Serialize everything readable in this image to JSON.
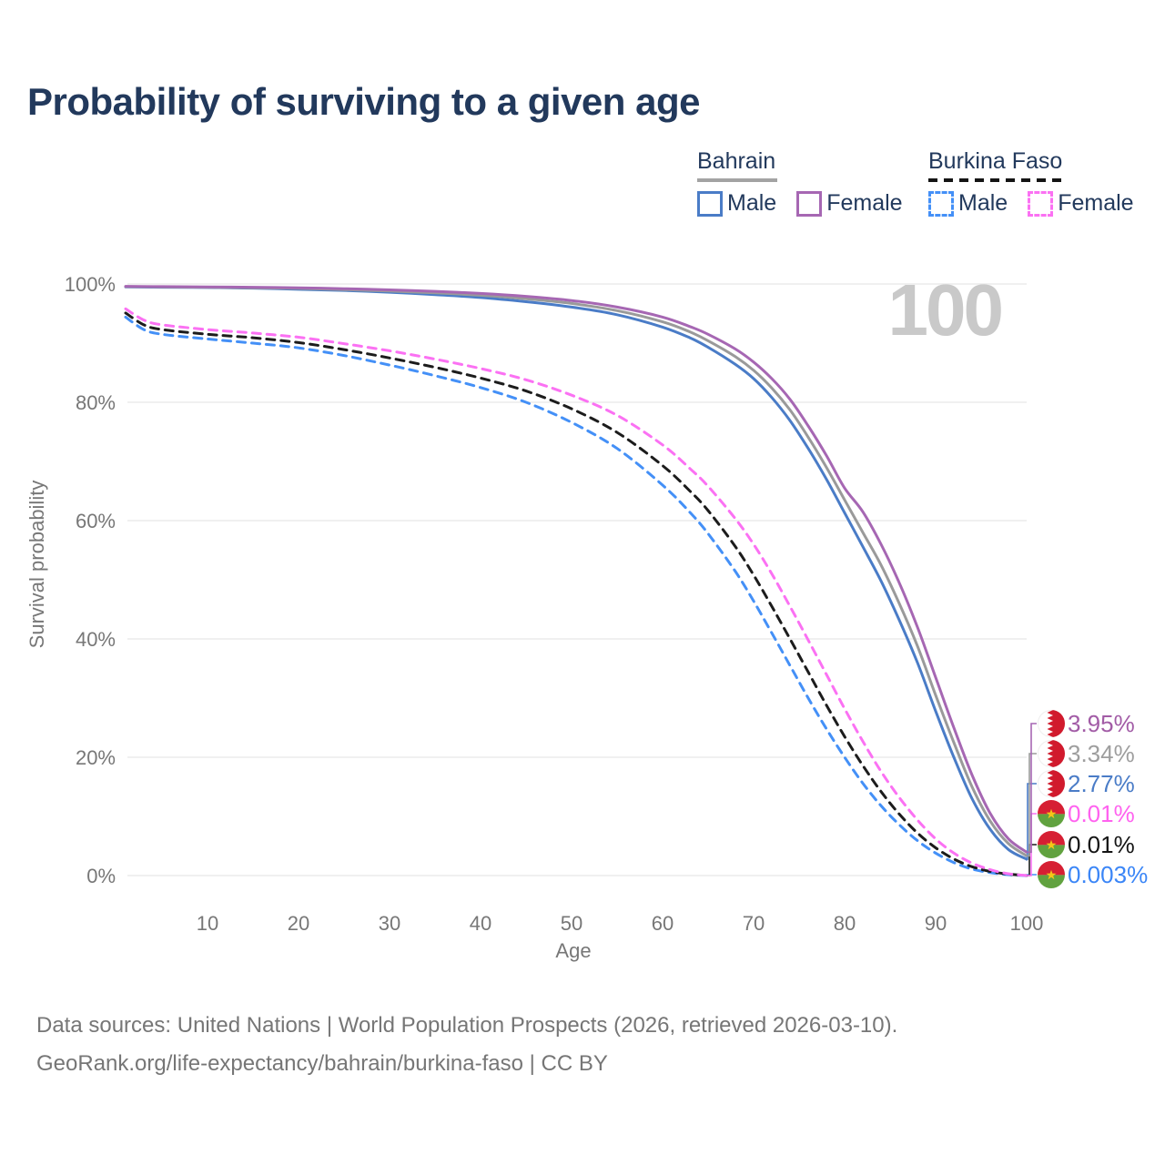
{
  "title": "Probability of surviving to a given age",
  "watermark": "100",
  "legend": {
    "groups": [
      {
        "label": "Bahrain",
        "underline": "solid",
        "underline_color": "#a3a3a3",
        "items": [
          {
            "label": "Male",
            "color": "#4a7cc7",
            "dashed": false
          },
          {
            "label": "Female",
            "color": "#a667b3",
            "dashed": false
          }
        ]
      },
      {
        "label": "Burkina Faso",
        "underline": "dashed",
        "underline_color": "#141414",
        "items": [
          {
            "label": "Male",
            "color": "#4490f7",
            "dashed": true
          },
          {
            "label": "Female",
            "color": "#fb71f3",
            "dashed": true
          }
        ]
      }
    ]
  },
  "chart_data": {
    "type": "line",
    "xlabel": "Age",
    "ylabel": "Survival probability",
    "xlim": [
      0,
      100
    ],
    "ylim": [
      0,
      100
    ],
    "grid": "horizontal",
    "x_ticks": [
      10,
      20,
      30,
      40,
      50,
      60,
      70,
      80,
      90,
      100
    ],
    "y_ticks": [
      {
        "value": 0,
        "label": "0%"
      },
      {
        "value": 20,
        "label": "20%"
      },
      {
        "value": 40,
        "label": "40%"
      },
      {
        "value": 60,
        "label": "60%"
      },
      {
        "value": 80,
        "label": "80%"
      },
      {
        "value": 100,
        "label": "100%"
      }
    ],
    "series": [
      {
        "name": "Burkina Faso Male",
        "color": "#4490f7",
        "dashed": true,
        "flag": "burkina-faso",
        "end_label": "0.003%",
        "end_label_color": "#3b86f7",
        "label_slot": 5,
        "points": [
          [
            1,
            94.4
          ],
          [
            3,
            92.3
          ],
          [
            5,
            91.5
          ],
          [
            10,
            90.7
          ],
          [
            15,
            90.0
          ],
          [
            20,
            89.2
          ],
          [
            25,
            87.9
          ],
          [
            30,
            86.3
          ],
          [
            35,
            84.5
          ],
          [
            40,
            82.5
          ],
          [
            45,
            80.0
          ],
          [
            50,
            76.6
          ],
          [
            55,
            72.2
          ],
          [
            60,
            66.0
          ],
          [
            63,
            61.4
          ],
          [
            65,
            57.8
          ],
          [
            68,
            51.4
          ],
          [
            70,
            46.4
          ],
          [
            72,
            41.0
          ],
          [
            74,
            35.5
          ],
          [
            76,
            30.0
          ],
          [
            78,
            24.8
          ],
          [
            80,
            20.0
          ],
          [
            82,
            15.6
          ],
          [
            84,
            11.8
          ],
          [
            86,
            8.6
          ],
          [
            88,
            5.9
          ],
          [
            90,
            3.8
          ],
          [
            92,
            2.2
          ],
          [
            94,
            1.1
          ],
          [
            96,
            0.5
          ],
          [
            98,
            0.15
          ],
          [
            100,
            0.003
          ]
        ]
      },
      {
        "name": "Burkina Faso",
        "color": "#1c1c1c",
        "dashed": true,
        "flag": "burkina-faso",
        "end_label": "0.01%",
        "end_label_color": "#141414",
        "label_slot": 4,
        "points": [
          [
            1,
            95.1
          ],
          [
            3,
            93.1
          ],
          [
            5,
            92.3
          ],
          [
            10,
            91.5
          ],
          [
            15,
            90.9
          ],
          [
            20,
            90.1
          ],
          [
            25,
            88.9
          ],
          [
            30,
            87.5
          ],
          [
            35,
            85.9
          ],
          [
            40,
            84.1
          ],
          [
            45,
            81.9
          ],
          [
            50,
            78.9
          ],
          [
            55,
            74.9
          ],
          [
            60,
            69.3
          ],
          [
            63,
            65.0
          ],
          [
            65,
            61.7
          ],
          [
            68,
            55.6
          ],
          [
            70,
            50.8
          ],
          [
            72,
            45.5
          ],
          [
            74,
            40.0
          ],
          [
            76,
            34.4
          ],
          [
            78,
            28.8
          ],
          [
            80,
            23.5
          ],
          [
            82,
            18.6
          ],
          [
            84,
            14.2
          ],
          [
            86,
            10.4
          ],
          [
            88,
            7.2
          ],
          [
            90,
            4.7
          ],
          [
            92,
            2.8
          ],
          [
            94,
            1.5
          ],
          [
            96,
            0.7
          ],
          [
            98,
            0.25
          ],
          [
            100,
            0.01
          ]
        ]
      },
      {
        "name": "Burkina Faso Female",
        "color": "#fb71f3",
        "dashed": true,
        "flag": "burkina-faso",
        "end_label": "0.01%",
        "end_label_color": "#ff62ef",
        "label_slot": 3,
        "points": [
          [
            1,
            95.8
          ],
          [
            3,
            93.9
          ],
          [
            5,
            93.1
          ],
          [
            10,
            92.3
          ],
          [
            15,
            91.7
          ],
          [
            20,
            91.0
          ],
          [
            25,
            89.9
          ],
          [
            30,
            88.7
          ],
          [
            35,
            87.3
          ],
          [
            40,
            85.7
          ],
          [
            45,
            83.8
          ],
          [
            50,
            81.2
          ],
          [
            55,
            77.8
          ],
          [
            60,
            72.8
          ],
          [
            63,
            68.8
          ],
          [
            65,
            65.8
          ],
          [
            68,
            60.3
          ],
          [
            70,
            56.0
          ],
          [
            72,
            51.0
          ],
          [
            74,
            45.5
          ],
          [
            76,
            39.8
          ],
          [
            78,
            34.0
          ],
          [
            80,
            28.2
          ],
          [
            82,
            22.7
          ],
          [
            84,
            17.6
          ],
          [
            86,
            13.2
          ],
          [
            88,
            9.4
          ],
          [
            90,
            6.2
          ],
          [
            92,
            3.8
          ],
          [
            94,
            2.1
          ],
          [
            96,
            1.0
          ],
          [
            98,
            0.3
          ],
          [
            100,
            0.011
          ]
        ]
      },
      {
        "name": "Bahrain Male",
        "color": "#4a7cc7",
        "dashed": false,
        "flag": "bahrain",
        "end_label": "2.77%",
        "end_label_color": "#4a7cc7",
        "label_slot": 2,
        "points": [
          [
            1,
            99.5
          ],
          [
            5,
            99.45
          ],
          [
            10,
            99.4
          ],
          [
            15,
            99.3
          ],
          [
            20,
            99.1
          ],
          [
            25,
            98.9
          ],
          [
            30,
            98.6
          ],
          [
            35,
            98.2
          ],
          [
            40,
            97.7
          ],
          [
            45,
            97.0
          ],
          [
            50,
            96.1
          ],
          [
            55,
            94.8
          ],
          [
            60,
            92.7
          ],
          [
            63,
            90.9
          ],
          [
            65,
            89.3
          ],
          [
            68,
            86.4
          ],
          [
            70,
            84.0
          ],
          [
            72,
            80.8
          ],
          [
            74,
            76.9
          ],
          [
            76,
            72.2
          ],
          [
            78,
            67.0
          ],
          [
            80,
            61.3
          ],
          [
            82,
            55.6
          ],
          [
            84,
            49.8
          ],
          [
            86,
            43.2
          ],
          [
            88,
            36.0
          ],
          [
            90,
            27.8
          ],
          [
            92,
            20.0
          ],
          [
            94,
            13.0
          ],
          [
            96,
            7.8
          ],
          [
            98,
            4.4
          ],
          [
            100,
            2.77
          ]
        ]
      },
      {
        "name": "Bahrain",
        "color": "#9a9a9a",
        "dashed": false,
        "flag": "bahrain",
        "end_label": "3.34%",
        "end_label_color": "#9e9e9e",
        "label_slot": 1,
        "points": [
          [
            1,
            99.55
          ],
          [
            5,
            99.5
          ],
          [
            10,
            99.45
          ],
          [
            15,
            99.35
          ],
          [
            20,
            99.25
          ],
          [
            25,
            99.05
          ],
          [
            30,
            98.8
          ],
          [
            35,
            98.5
          ],
          [
            40,
            98.1
          ],
          [
            45,
            97.5
          ],
          [
            50,
            96.7
          ],
          [
            55,
            95.5
          ],
          [
            60,
            93.6
          ],
          [
            63,
            91.9
          ],
          [
            65,
            90.4
          ],
          [
            68,
            87.7
          ],
          [
            70,
            85.4
          ],
          [
            72,
            82.4
          ],
          [
            74,
            78.7
          ],
          [
            76,
            74.1
          ],
          [
            78,
            69.0
          ],
          [
            80,
            63.5
          ],
          [
            82,
            58.0
          ],
          [
            84,
            52.5
          ],
          [
            86,
            46.0
          ],
          [
            88,
            38.8
          ],
          [
            90,
            30.5
          ],
          [
            92,
            22.5
          ],
          [
            94,
            15.0
          ],
          [
            96,
            9.2
          ],
          [
            98,
            5.4
          ],
          [
            100,
            3.34
          ]
        ]
      },
      {
        "name": "Bahrain Female",
        "color": "#a667b3",
        "dashed": false,
        "flag": "bahrain",
        "end_label": "3.95%",
        "end_label_color": "#a25ca6",
        "label_slot": 0,
        "points": [
          [
            1,
            99.6
          ],
          [
            5,
            99.55
          ],
          [
            10,
            99.5
          ],
          [
            15,
            99.45
          ],
          [
            20,
            99.35
          ],
          [
            25,
            99.2
          ],
          [
            30,
            99.0
          ],
          [
            35,
            98.75
          ],
          [
            40,
            98.4
          ],
          [
            45,
            97.9
          ],
          [
            50,
            97.2
          ],
          [
            55,
            96.1
          ],
          [
            60,
            94.4
          ],
          [
            63,
            92.8
          ],
          [
            65,
            91.5
          ],
          [
            68,
            89.0
          ],
          [
            70,
            86.8
          ],
          [
            72,
            84.0
          ],
          [
            74,
            80.5
          ],
          [
            76,
            76.0
          ],
          [
            78,
            71.0
          ],
          [
            80,
            65.5
          ],
          [
            82,
            61.5
          ],
          [
            84,
            56.0
          ],
          [
            86,
            49.5
          ],
          [
            88,
            42.0
          ],
          [
            90,
            33.5
          ],
          [
            92,
            25.0
          ],
          [
            94,
            17.0
          ],
          [
            96,
            10.5
          ],
          [
            98,
            6.2
          ],
          [
            100,
            3.95
          ]
        ]
      }
    ]
  },
  "footer": {
    "line1": "Data sources: United Nations | World Population Prospects (2026, retrieved 2026-03-10).",
    "line2": "GeoRank.org/life-expectancy/bahrain/burkina-faso | CC BY"
  }
}
